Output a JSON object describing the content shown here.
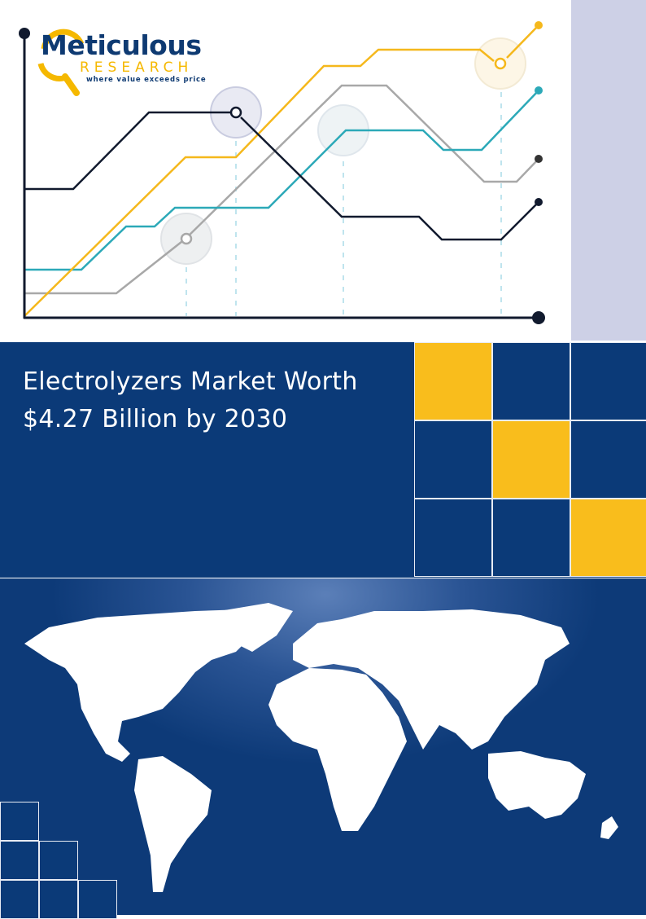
{
  "logo": {
    "name": "Meticulous",
    "sub": "RESEARCH",
    "tagline": "where value exceeds price"
  },
  "title": {
    "line1": "Electrolyzers Market Worth",
    "line2": "$4.27 Billion by 2030"
  },
  "colors": {
    "navy": "#0b3a78",
    "yellow": "#f9bd1c",
    "teal": "#2ca9b8",
    "gray": "#a8a8a8",
    "dark": "#111a2e",
    "lavender": "#cdd0e6"
  }
}
